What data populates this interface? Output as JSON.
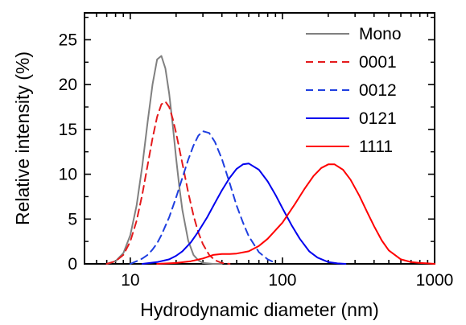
{
  "chart_data": {
    "type": "line",
    "title": "",
    "xlabel": "Hydrodynamic diameter (nm)",
    "ylabel": "Relative intensity (%)",
    "xscale": "log",
    "xlim": [
      5,
      1000
    ],
    "ylim": [
      0,
      28
    ],
    "x_ticks": [
      10,
      100,
      1000
    ],
    "x_tick_labels": [
      "10",
      "100",
      "1000"
    ],
    "y_ticks": [
      0,
      5,
      10,
      15,
      20,
      25
    ],
    "y_tick_labels": [
      "0",
      "5",
      "10",
      "15",
      "20",
      "25"
    ],
    "grid": false,
    "legend_position": "top-right",
    "series": [
      {
        "name": "Mono",
        "color": "#808080",
        "dash": "solid",
        "x": [
          7,
          8,
          9,
          10,
          11,
          12,
          13,
          14,
          15,
          16,
          17,
          18,
          19,
          20,
          21,
          22,
          24,
          26,
          28,
          30,
          35,
          40
        ],
        "y": [
          0,
          0.3,
          1.2,
          3.2,
          6.5,
          11,
          15.8,
          20,
          22.8,
          23.2,
          21.8,
          19,
          15.5,
          11.8,
          8.6,
          6,
          2.6,
          1.0,
          0.4,
          0.1,
          0,
          0
        ]
      },
      {
        "name": "0001",
        "color": "#e41a1c",
        "dash": "dashed",
        "x": [
          7,
          8,
          9,
          10,
          11,
          12,
          13,
          14,
          15,
          16,
          17,
          18,
          19,
          20,
          22,
          24,
          26,
          28,
          30,
          33,
          36,
          40,
          45
        ],
        "y": [
          0,
          0.3,
          1.0,
          2.5,
          4.8,
          7.8,
          11,
          14,
          16.4,
          17.8,
          18.1,
          17.5,
          16.2,
          14.6,
          11.2,
          8.0,
          5.4,
          3.5,
          2.2,
          1.0,
          0.4,
          0.1,
          0
        ]
      },
      {
        "name": "0012",
        "color": "#1f3fe0",
        "dash": "dashed",
        "x": [
          10,
          11,
          12,
          13,
          14,
          15,
          16,
          18,
          20,
          22,
          24,
          26,
          28,
          30,
          33,
          36,
          40,
          45,
          50,
          55,
          60,
          70,
          80,
          90
        ],
        "y": [
          0,
          0.3,
          0.6,
          1.0,
          1.6,
          2.3,
          3.2,
          5.2,
          7.4,
          9.6,
          11.6,
          13.2,
          14.3,
          14.8,
          14.6,
          13.6,
          11.7,
          9.0,
          6.5,
          4.6,
          3.1,
          1.3,
          0.5,
          0.1
        ]
      },
      {
        "name": "0121",
        "color": "#0000ee",
        "dash": "solid",
        "x": [
          12,
          15,
          18,
          20,
          22,
          25,
          28,
          32,
          36,
          40,
          45,
          50,
          55,
          60,
          70,
          80,
          90,
          100,
          115,
          130,
          150,
          170,
          200,
          230,
          260
        ],
        "y": [
          0,
          0.2,
          0.5,
          0.9,
          1.4,
          2.4,
          3.6,
          5.2,
          6.8,
          8.2,
          9.6,
          10.6,
          11.1,
          11.2,
          10.5,
          9.2,
          7.7,
          6.2,
          4.3,
          2.8,
          1.4,
          0.7,
          0.2,
          0.05,
          0
        ]
      },
      {
        "name": "1111",
        "color": "#ff0000",
        "dash": "solid",
        "x": [
          15,
          20,
          25,
          30,
          35,
          40,
          45,
          50,
          60,
          70,
          80,
          100,
          120,
          140,
          160,
          180,
          200,
          220,
          250,
          280,
          320,
          360,
          400,
          450,
          500,
          600,
          700,
          800,
          900,
          1000
        ],
        "y": [
          0,
          0.1,
          0.3,
          0.6,
          1.0,
          1.1,
          1.1,
          1.15,
          1.4,
          2.0,
          2.8,
          4.6,
          6.6,
          8.4,
          9.8,
          10.7,
          11.1,
          11.1,
          10.5,
          9.4,
          7.6,
          5.8,
          4.2,
          2.6,
          1.5,
          0.5,
          0.2,
          0.1,
          0.05,
          0
        ]
      }
    ]
  }
}
